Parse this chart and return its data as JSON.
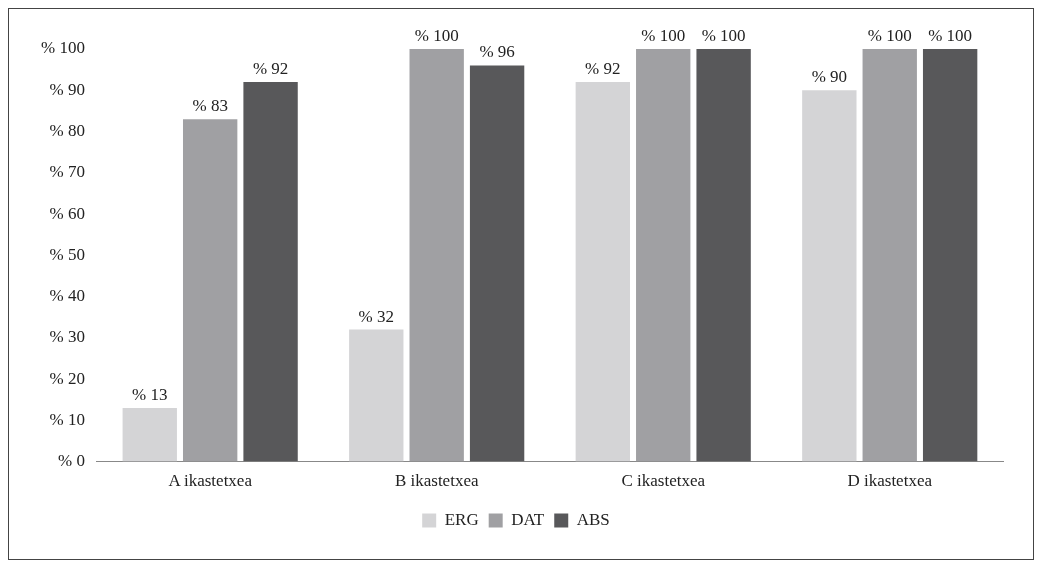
{
  "chart_data": {
    "type": "bar",
    "categories": [
      "A ikastetxea",
      "B ikastetxea",
      "C ikastetxea",
      "D ikastetxea"
    ],
    "series": [
      {
        "name": "ERG",
        "color": "#d4d4d6",
        "values": [
          13,
          32,
          92,
          90
        ],
        "value_labels": [
          "% 13",
          "% 32",
          "% 92",
          "% 90"
        ]
      },
      {
        "name": "DAT",
        "color": "#a0a0a3",
        "values": [
          83,
          100,
          100,
          100
        ],
        "value_labels": [
          "% 83",
          "% 100",
          "% 100",
          "% 100"
        ]
      },
      {
        "name": "ABS",
        "color": "#58585a",
        "values": [
          92,
          96,
          100,
          100
        ],
        "value_labels": [
          "% 92",
          "% 96",
          "% 100",
          "% 100"
        ]
      }
    ],
    "ylim": [
      0,
      100
    ],
    "yticks": [
      {
        "value": 0,
        "label": "% 0"
      },
      {
        "value": 10,
        "label": "% 10"
      },
      {
        "value": 20,
        "label": "% 20"
      },
      {
        "value": 30,
        "label": "% 30"
      },
      {
        "value": 40,
        "label": "% 40"
      },
      {
        "value": 50,
        "label": "% 50"
      },
      {
        "value": 60,
        "label": "% 60"
      },
      {
        "value": 70,
        "label": "% 70"
      },
      {
        "value": 80,
        "label": "% 80"
      },
      {
        "value": 90,
        "label": "% 90"
      },
      {
        "value": 100,
        "label": "% 100"
      }
    ],
    "grid": false,
    "legend": "bottom"
  }
}
